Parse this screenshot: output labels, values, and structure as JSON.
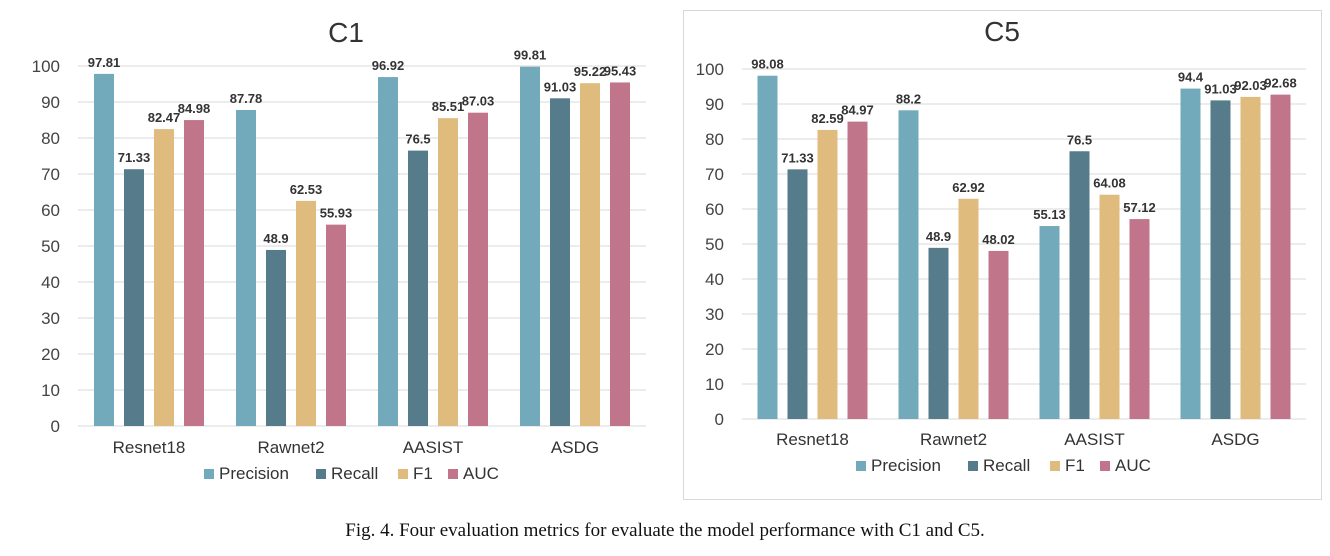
{
  "caption": "Fig. 4.   Four evaluation metrics for evaluate the model performance with C1 and C5.",
  "colors": {
    "Precision": "#72aabb",
    "Recall": "#567b8b",
    "F1": "#dfbb7e",
    "AUC": "#c0758b"
  },
  "chart_data": [
    {
      "type": "bar",
      "title": "C1",
      "categories": [
        "Resnet18",
        "Rawnet2",
        "AASIST",
        "ASDG"
      ],
      "series": [
        {
          "name": "Precision",
          "values": [
            97.81,
            87.78,
            96.92,
            99.81
          ]
        },
        {
          "name": "Recall",
          "values": [
            71.33,
            48.9,
            76.5,
            91.03
          ]
        },
        {
          "name": "F1",
          "values": [
            82.47,
            62.53,
            85.51,
            95.22
          ]
        },
        {
          "name": "AUC",
          "values": [
            84.98,
            55.93,
            87.03,
            95.43
          ]
        }
      ],
      "ylim": [
        0,
        100
      ],
      "yticks": [
        0,
        10,
        20,
        30,
        40,
        50,
        60,
        70,
        80,
        90,
        100
      ],
      "grid": true,
      "legend": "bottom"
    },
    {
      "type": "bar",
      "title": "C5",
      "categories": [
        "Resnet18",
        "Rawnet2",
        "AASIST",
        "ASDG"
      ],
      "series": [
        {
          "name": "Precision",
          "values": [
            98.08,
            88.2,
            55.13,
            94.4
          ]
        },
        {
          "name": "Recall",
          "values": [
            71.33,
            48.9,
            76.5,
            91.03
          ]
        },
        {
          "name": "F1",
          "values": [
            82.59,
            62.92,
            64.08,
            92.03
          ]
        },
        {
          "name": "AUC",
          "values": [
            84.97,
            48.02,
            57.12,
            92.68
          ]
        }
      ],
      "ylim": [
        0,
        100
      ],
      "yticks": [
        0,
        10,
        20,
        30,
        40,
        50,
        60,
        70,
        80,
        90,
        100
      ],
      "grid": true,
      "legend": "bottom"
    }
  ]
}
